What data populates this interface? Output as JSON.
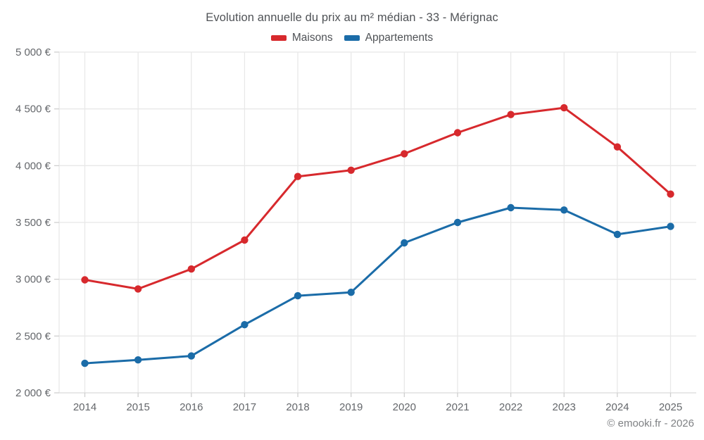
{
  "header": {
    "title": "Evolution annuelle du prix au m² médian - 33 - Mérignac"
  },
  "footer": {
    "credit": "© emooki.fr - 2026"
  },
  "chart_data": {
    "type": "line",
    "title": "Evolution annuelle du prix au m² médian - 33 - Mérignac",
    "categories": [
      "2014",
      "2015",
      "2016",
      "2017",
      "2018",
      "2019",
      "2020",
      "2021",
      "2022",
      "2023",
      "2024",
      "2025"
    ],
    "series": [
      {
        "name": "Maisons",
        "color": "#d7292d",
        "values": [
          2995,
          2915,
          3090,
          3345,
          3905,
          3960,
          4105,
          4290,
          4450,
          4510,
          4165,
          3750
        ]
      },
      {
        "name": "Appartements",
        "color": "#1b6ca8",
        "values": [
          2260,
          2290,
          2325,
          2600,
          2855,
          2885,
          3320,
          3500,
          3630,
          3610,
          3395,
          3465
        ]
      }
    ],
    "xlabel": "",
    "ylabel": "",
    "ylim": [
      2000,
      5000
    ],
    "ytick_step": 500,
    "ytick_labels": [
      "2 000 €",
      "2 500 €",
      "3 000 €",
      "3 500 €",
      "4 000 €",
      "4 500 €",
      "5 000 €"
    ],
    "grid": true,
    "legend_position": "top",
    "marker": "circle"
  }
}
